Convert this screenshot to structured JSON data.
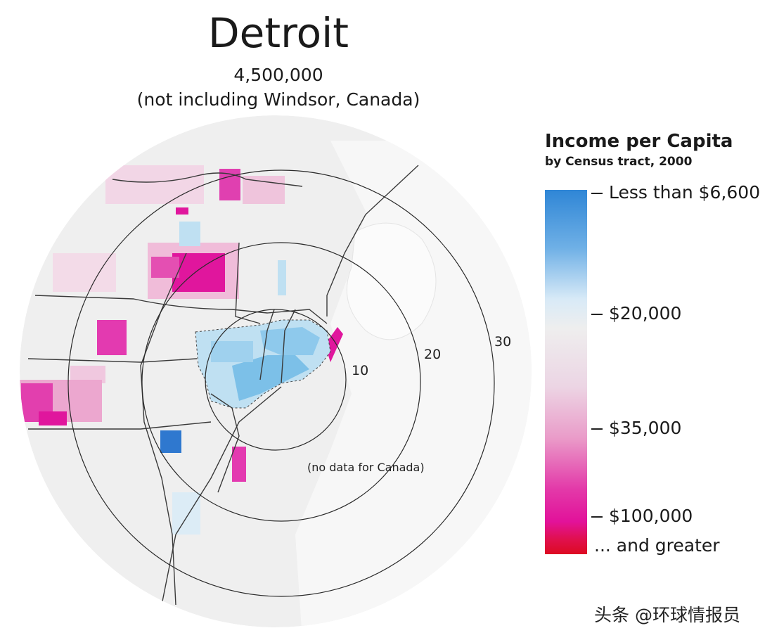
{
  "header": {
    "title": "Detroit",
    "population": "4,500,000",
    "note": "(not including Windsor, Canada)"
  },
  "map": {
    "ring_labels": [
      "10",
      "20",
      "30"
    ],
    "no_data_note": "(no data for Canada)"
  },
  "legend": {
    "title": "Income per Capita",
    "subtitle": "by Census tract, 2000",
    "ticks": [
      "Less than $6,600",
      "$20,000",
      "$35,000",
      "$100,000"
    ],
    "tail": "... and greater",
    "colors": {
      "low": "#2f86d6",
      "mid": "#eeeeee",
      "high": "#e2129a",
      "max": "#dd0a22"
    }
  },
  "watermark": "头条 @环球情报员"
}
